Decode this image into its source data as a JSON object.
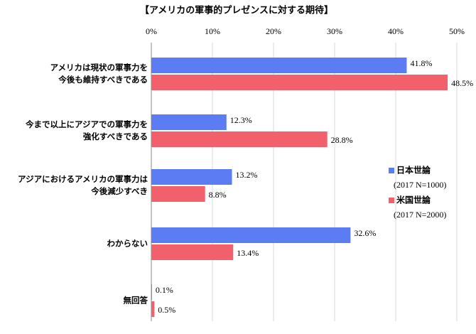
{
  "chart_data": {
    "type": "bar",
    "orientation": "horizontal",
    "title": "【アメリカの軍事的プレゼンスに対する期待】",
    "categories": [
      "アメリカは現状の軍事力を\n今後も維持すべきである",
      "今まで以上にアジアでの軍事力を\n強化すべきである",
      "アジアにおけるアメリカの軍事力は\n今後減少すべき",
      "わからない",
      "無回答"
    ],
    "series": [
      {
        "name": "日本世論",
        "note": "(2017 N=1000)",
        "color": "#5b7cf2",
        "values": [
          41.8,
          12.3,
          13.2,
          32.6,
          0.1
        ],
        "value_labels": [
          "41.8%",
          "12.3%",
          "13.2%",
          "32.6%",
          "0.1%"
        ]
      },
      {
        "name": "米国世論",
        "note": "(2017 N=2000)",
        "color": "#f2606c",
        "values": [
          48.5,
          28.8,
          8.8,
          13.4,
          0.5
        ],
        "value_labels": [
          "48.5%",
          "28.8%",
          "8.8%",
          "13.4%",
          "0.5%"
        ]
      }
    ],
    "xlim": [
      0,
      50
    ],
    "xticks": [
      {
        "value": 0,
        "label": "0%"
      },
      {
        "value": 10,
        "label": "10%"
      },
      {
        "value": 20,
        "label": "20%"
      },
      {
        "value": 30,
        "label": "30%"
      },
      {
        "value": 40,
        "label": "40%"
      },
      {
        "value": 50,
        "label": "50%"
      }
    ],
    "grid": true
  }
}
